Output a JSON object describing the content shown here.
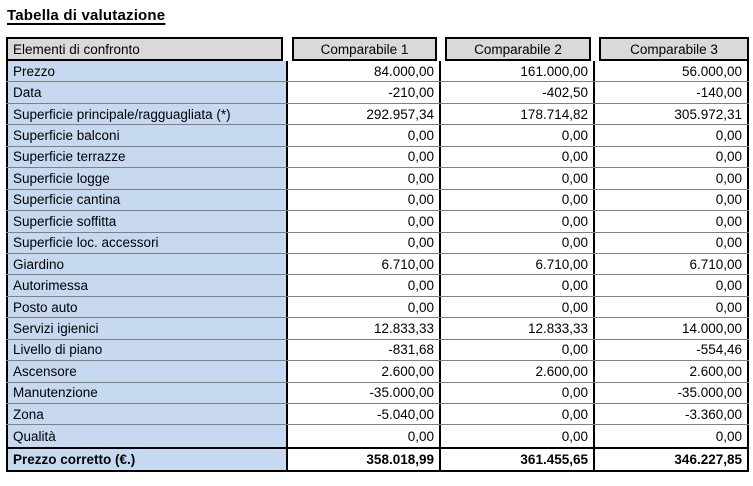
{
  "title": "Tabella di valutazione",
  "table": {
    "header": [
      "Elementi di confronto",
      "Comparabile 1",
      "Comparabile 2",
      "Comparabile 3"
    ],
    "rows": [
      {
        "label": "Prezzo",
        "values": [
          "84.000,00",
          "161.000,00",
          "56.000,00"
        ]
      },
      {
        "label": "Data",
        "values": [
          "-210,00",
          "-402,50",
          "-140,00"
        ]
      },
      {
        "label": "Superficie principale/ragguagliata (*)",
        "values": [
          "292.957,34",
          "178.714,82",
          "305.972,31"
        ]
      },
      {
        "label": "Superficie balconi",
        "values": [
          "0,00",
          "0,00",
          "0,00"
        ]
      },
      {
        "label": "Superficie terrazze",
        "values": [
          "0,00",
          "0,00",
          "0,00"
        ]
      },
      {
        "label": "Superficie logge",
        "values": [
          "0,00",
          "0,00",
          "0,00"
        ]
      },
      {
        "label": "Superficie cantina",
        "values": [
          "0,00",
          "0,00",
          "0,00"
        ]
      },
      {
        "label": "Superficie soffitta",
        "values": [
          "0,00",
          "0,00",
          "0,00"
        ]
      },
      {
        "label": "Superficie loc. accessori",
        "values": [
          "0,00",
          "0,00",
          "0,00"
        ]
      },
      {
        "label": "Giardino",
        "values": [
          "6.710,00",
          "6.710,00",
          "6.710,00"
        ]
      },
      {
        "label": "Autorimessa",
        "values": [
          "0,00",
          "0,00",
          "0,00"
        ]
      },
      {
        "label": "Posto auto",
        "values": [
          "0,00",
          "0,00",
          "0,00"
        ]
      },
      {
        "label": "Servizi igienici",
        "values": [
          "12.833,33",
          "12.833,33",
          "14.000,00"
        ]
      },
      {
        "label": "Livello di piano",
        "values": [
          "-831,68",
          "0,00",
          "-554,46"
        ]
      },
      {
        "label": "Ascensore",
        "values": [
          "2.600,00",
          "2.600,00",
          "2.600,00"
        ]
      },
      {
        "label": "Manutenzione",
        "values": [
          "-35.000,00",
          "0,00",
          "-35.000,00"
        ]
      },
      {
        "label": "Zona",
        "values": [
          "-5.040,00",
          "0,00",
          "-3.360,00"
        ]
      },
      {
        "label": "Qualità",
        "values": [
          "0,00",
          "0,00",
          "0,00"
        ]
      }
    ],
    "total_row": {
      "label": "Prezzo corretto (€.)",
      "values": [
        "358.018,99",
        "361.455,65",
        "346.227,85"
      ]
    },
    "colors": {
      "header_bg": "#d9d9d9",
      "label_bg": "#c6d9f1",
      "grid_line": "#808080",
      "border": "#000000"
    }
  }
}
